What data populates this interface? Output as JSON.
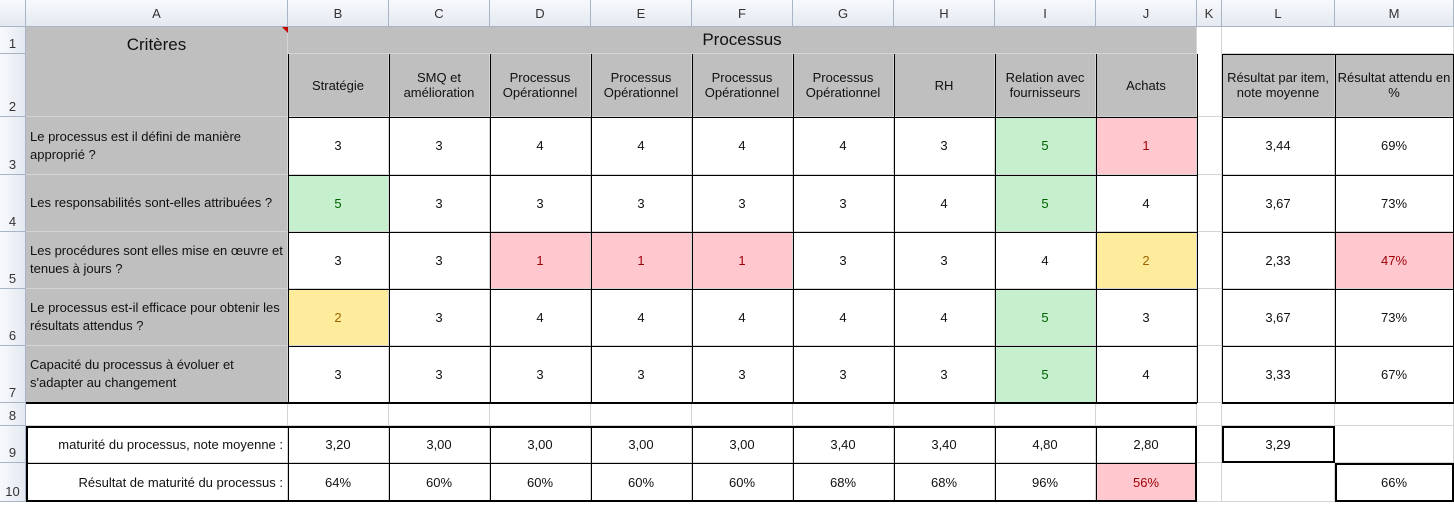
{
  "columns": [
    "A",
    "B",
    "C",
    "D",
    "E",
    "F",
    "G",
    "H",
    "I",
    "J",
    "K",
    "L",
    "M"
  ],
  "rows": [
    "1",
    "2",
    "3",
    "4",
    "5",
    "6",
    "7",
    "8",
    "9",
    "10"
  ],
  "header": {
    "criteres": "Critères",
    "processus": "Processus",
    "col_labels": [
      "Stratégie",
      "SMQ et amélioration",
      "Processus Opérationnel",
      "Processus Opérationnel",
      "Processus Opérationnel",
      "Processus Opérationnel",
      "RH",
      "Relation avec fournisseurs",
      "Achats"
    ],
    "resultat_item": "Résultat par item, note moyenne",
    "resultat_pct": "Résultat attendu en %"
  },
  "criteria": [
    {
      "label": "Le processus est il défini de manière approprié ?",
      "values": [
        "3",
        "3",
        "4",
        "4",
        "4",
        "4",
        "3",
        "5",
        "1"
      ],
      "avg": "3,44",
      "pct": "69%"
    },
    {
      "label": "Les responsabilités sont-elles attribuées ?",
      "values": [
        "5",
        "3",
        "3",
        "3",
        "3",
        "3",
        "4",
        "5",
        "4"
      ],
      "avg": "3,67",
      "pct": "73%"
    },
    {
      "label": "Les procédures sont elles mise en œuvre et tenues à jours ?",
      "values": [
        "3",
        "3",
        "1",
        "1",
        "1",
        "3",
        "3",
        "4",
        "2"
      ],
      "avg": "2,33",
      "pct": "47%"
    },
    {
      "label": "Le processus est-il efficace pour obtenir les résultats attendus ?",
      "values": [
        "2",
        "3",
        "4",
        "4",
        "4",
        "4",
        "4",
        "5",
        "3"
      ],
      "avg": "3,67",
      "pct": "73%"
    },
    {
      "label": "Capacité du processus à évoluer et s'adapter au changement",
      "values": [
        "3",
        "3",
        "3",
        "3",
        "3",
        "3",
        "3",
        "5",
        "4"
      ],
      "avg": "3,33",
      "pct": "67%"
    }
  ],
  "maturity": {
    "label": "maturité du processus, note moyenne :",
    "values": [
      "3,20",
      "3,00",
      "3,00",
      "3,00",
      "3,00",
      "3,40",
      "3,40",
      "4,80",
      "2,80"
    ],
    "overall": "3,29"
  },
  "result": {
    "label": "Résultat de maturité du processus :",
    "values": [
      "64%",
      "60%",
      "60%",
      "60%",
      "60%",
      "68%",
      "68%",
      "96%",
      "56%"
    ],
    "overall": "66%"
  },
  "formatting": {
    "criteria_highlight": [
      [
        "",
        "",
        "",
        "",
        "",
        "",
        "",
        "green",
        "red"
      ],
      [
        "green",
        "",
        "",
        "",
        "",
        "",
        "",
        "green",
        ""
      ],
      [
        "",
        "",
        "red",
        "red",
        "red",
        "",
        "",
        "",
        "yellow"
      ],
      [
        "yellow",
        "",
        "",
        "",
        "",
        "",
        "",
        "green",
        ""
      ],
      [
        "",
        "",
        "",
        "",
        "",
        "",
        "",
        "green",
        ""
      ]
    ],
    "pct_highlight": [
      "",
      "",
      "red",
      "",
      ""
    ],
    "result_highlight": [
      "",
      "",
      "",
      "",
      "",
      "",
      "",
      "",
      "red"
    ],
    "colors": {
      "green_fill": "#c6efce",
      "red_fill": "#ffc7ce",
      "yellow_fill": "#ffeb9c",
      "header_gray": "#bfbfbf"
    }
  }
}
